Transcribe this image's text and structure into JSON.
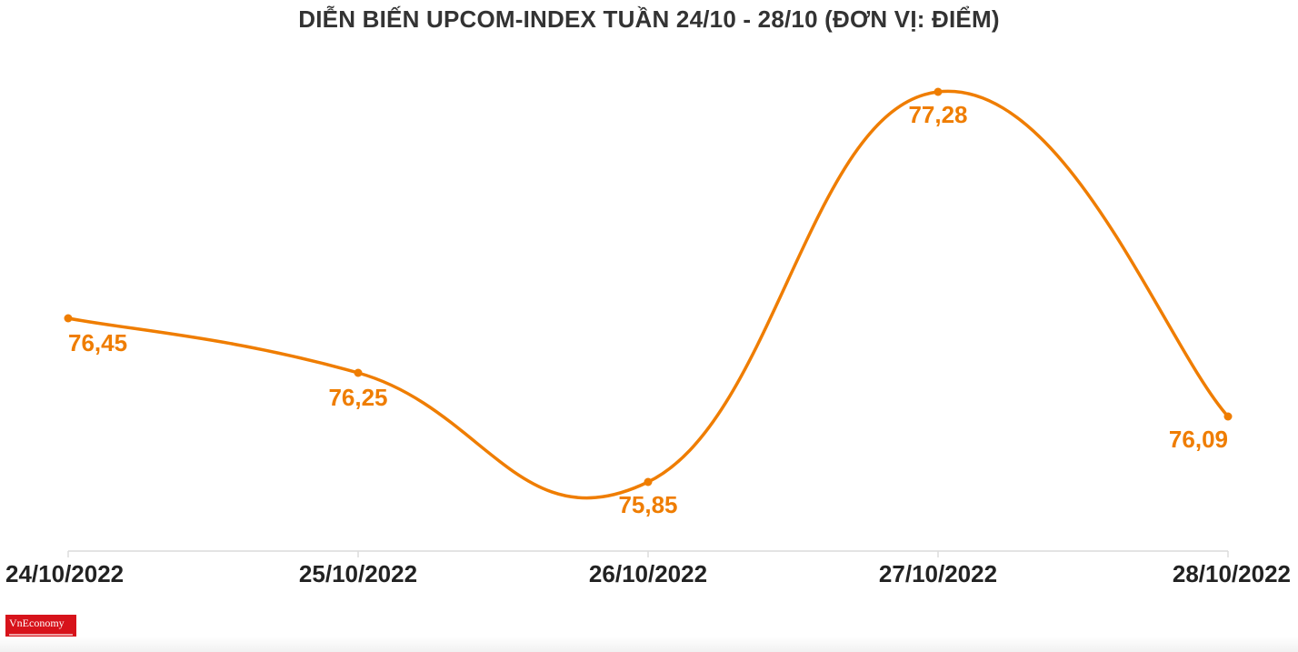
{
  "chart_data": {
    "type": "line",
    "title": "DIỄN BIẾN UPCOM-INDEX TUẦN 24/10 - 28/10 (ĐƠN VỊ: ĐIỂM)",
    "xlabel": "",
    "ylabel": "",
    "categories": [
      "24/10/2022",
      "25/10/2022",
      "26/10/2022",
      "27/10/2022",
      "28/10/2022"
    ],
    "series": [
      {
        "name": "",
        "values": [
          76.45,
          76.25,
          75.85,
          77.28,
          76.09
        ],
        "labels": [
          "76,45",
          "76,25",
          "75,85",
          "77,28",
          "76,09"
        ],
        "color": "#ef7d00",
        "smooth": true
      }
    ],
    "ylim": [
      75.6,
      77.45
    ],
    "grid": false,
    "legend": "none",
    "axis_color": "#dcdcdc"
  },
  "logo": {
    "text": "VnEconomy"
  }
}
